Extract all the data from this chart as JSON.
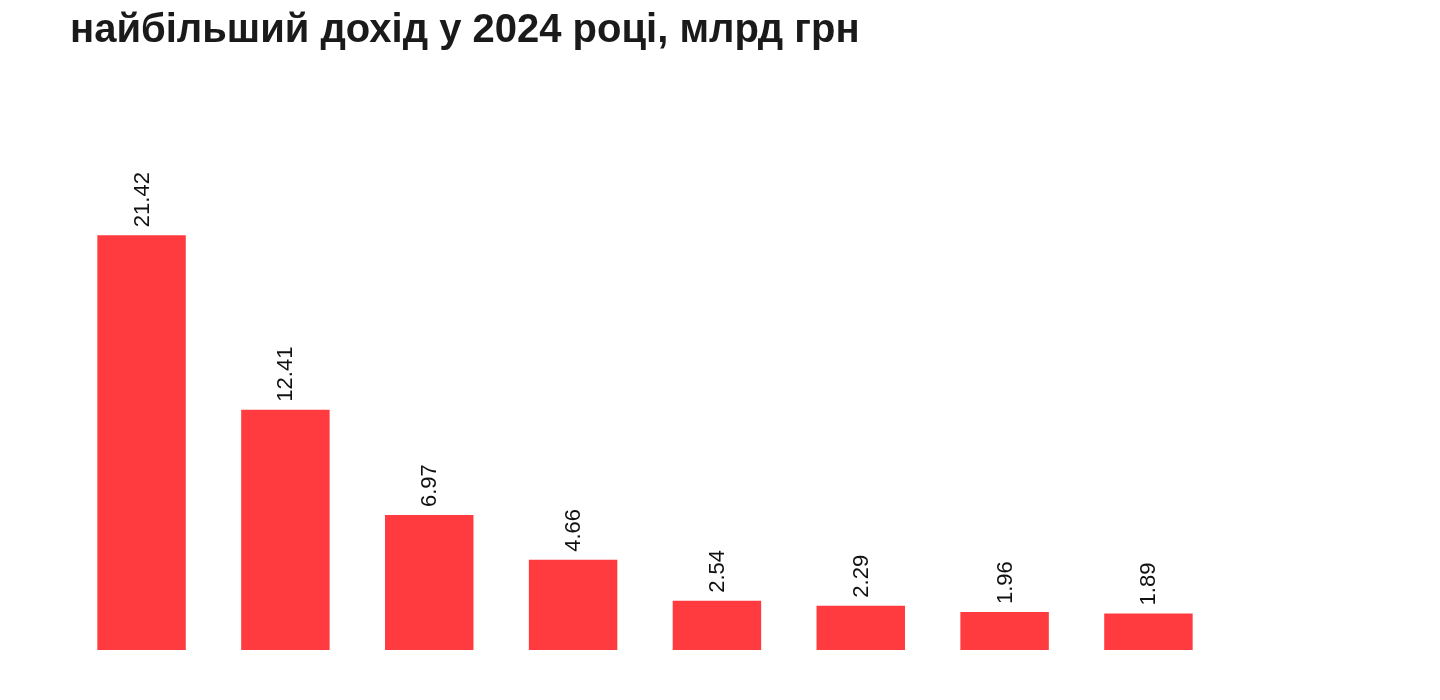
{
  "chart_data": {
    "type": "bar",
    "title": "найбільший дохід у 2024 році, млрд грн",
    "categories": [
      null,
      null,
      null,
      null,
      null,
      null,
      null,
      null
    ],
    "values": [
      21.42,
      12.41,
      6.97,
      4.66,
      2.54,
      2.29,
      1.96,
      1.89
    ],
    "color": "#ff3b3f",
    "data_labels": true
  }
}
